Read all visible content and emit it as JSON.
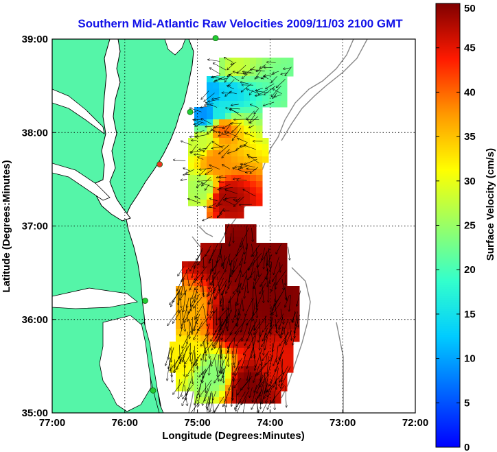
{
  "title": "Southern Mid-Atlantic Raw Velocities 2009/11/03 2100 GMT",
  "map": {
    "xlabel": "Longitude (Degrees:Minutes)",
    "ylabel": "Latitude (Degrees:Minutes)",
    "lon_range": [
      -77,
      -72
    ],
    "lat_range": [
      35,
      39
    ],
    "lon_ticks": [
      {
        "value": -77,
        "label": "77:00"
      },
      {
        "value": -76,
        "label": "76:00"
      },
      {
        "value": -75,
        "label": "75:00"
      },
      {
        "value": -74,
        "label": "74:00"
      },
      {
        "value": -73,
        "label": "73:00"
      },
      {
        "value": -72,
        "label": "72:00"
      }
    ],
    "lat_ticks": [
      {
        "value": 35,
        "label": "35:00"
      },
      {
        "value": 36,
        "label": "36:00"
      },
      {
        "value": 37,
        "label": "37:00"
      },
      {
        "value": 38,
        "label": "38:00"
      },
      {
        "value": 39,
        "label": "39:00"
      }
    ],
    "grid": "dotted",
    "land_color": "#55f5a8",
    "station_colors": {
      "active": "#22cc33",
      "inactive": "#ee3322"
    }
  },
  "colorbar": {
    "label": "Surface Velocity (cm/s)",
    "min": 0,
    "max": 50,
    "ticks": [
      {
        "value": 0,
        "label": "0"
      },
      {
        "value": 5,
        "label": "5"
      },
      {
        "value": 10,
        "label": "10"
      },
      {
        "value": 15,
        "label": "15"
      },
      {
        "value": 20,
        "label": "20"
      },
      {
        "value": 25,
        "label": "25"
      },
      {
        "value": 30,
        "label": "30"
      },
      {
        "value": 35,
        "label": "35"
      },
      {
        "value": 40,
        "label": "40"
      },
      {
        "value": 45,
        "label": "45"
      },
      {
        "value": 50,
        "label": "50"
      }
    ],
    "colormap": "jet"
  },
  "stations": [
    {
      "lon": -74.75,
      "lat": 39.01,
      "status": "active"
    },
    {
      "lon": -75.1,
      "lat": 38.22,
      "status": "active"
    },
    {
      "lon": -75.52,
      "lat": 37.66,
      "status": "inactive"
    },
    {
      "lon": -75.72,
      "lat": 36.2,
      "status": "active"
    },
    {
      "lon": -75.61,
      "lat": 35.24,
      "status": "active"
    }
  ],
  "chart_data": {
    "type": "heatmap",
    "description_units": "surface current speed (cm/s) on lon/lat grid",
    "regions": [
      {
        "name_in_image": "",
        "lon_range": [
          -75.05,
          -74.5
        ],
        "lat_range": [
          37.2,
          38.8
        ],
        "samples": [
          {
            "lon": -74.7,
            "lat": 38.7,
            "speed": 25
          },
          {
            "lon": -74.5,
            "lat": 38.7,
            "speed": 28
          },
          {
            "lon": -74.8,
            "lat": 38.45,
            "speed": 11
          },
          {
            "lon": -74.55,
            "lat": 38.45,
            "speed": 14
          },
          {
            "lon": -74.9,
            "lat": 38.2,
            "speed": 9
          },
          {
            "lon": -74.7,
            "lat": 38.2,
            "speed": 16
          },
          {
            "lon": -74.65,
            "lat": 38.05,
            "speed": 40
          },
          {
            "lon": -74.95,
            "lat": 37.9,
            "speed": 28
          },
          {
            "lon": -74.75,
            "lat": 37.7,
            "speed": 38
          },
          {
            "lon": -74.95,
            "lat": 37.4,
            "speed": 26
          },
          {
            "lon": -74.6,
            "lat": 37.3,
            "speed": 48
          }
        ]
      },
      {
        "name_in_image": "",
        "lon_range": [
          -75.3,
          -73.65
        ],
        "lat_range": [
          35.05,
          36.95
        ],
        "samples": [
          {
            "lon": -74.9,
            "lat": 36.85,
            "speed": 48
          },
          {
            "lon": -74.6,
            "lat": 36.7,
            "speed": 50
          },
          {
            "lon": -74.2,
            "lat": 36.5,
            "speed": 50
          },
          {
            "lon": -74.0,
            "lat": 36.2,
            "speed": 50
          },
          {
            "lon": -75.15,
            "lat": 36.1,
            "speed": 36
          },
          {
            "lon": -74.5,
            "lat": 36.0,
            "speed": 50
          },
          {
            "lon": -75.2,
            "lat": 35.6,
            "speed": 32
          },
          {
            "lon": -74.8,
            "lat": 35.4,
            "speed": 24
          },
          {
            "lon": -74.3,
            "lat": 35.3,
            "speed": 50
          },
          {
            "lon": -73.9,
            "lat": 35.5,
            "speed": 45
          }
        ]
      }
    ],
    "vectors": "arrows showing current direction, predominantly southward/southwestward in the southern region"
  }
}
